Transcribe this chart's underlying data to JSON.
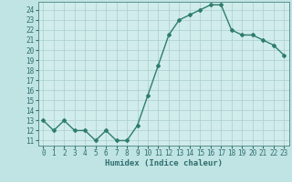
{
  "x": [
    0,
    1,
    2,
    3,
    4,
    5,
    6,
    7,
    8,
    9,
    10,
    11,
    12,
    13,
    14,
    15,
    16,
    17,
    18,
    19,
    20,
    21,
    22,
    23
  ],
  "y": [
    13,
    12,
    13,
    12,
    12,
    11,
    12,
    11,
    11,
    12.5,
    15.5,
    18.5,
    21.5,
    23,
    23.5,
    24,
    24.5,
    24.5,
    22,
    21.5,
    21.5,
    21,
    20.5,
    19.5
  ],
  "line_color": "#2e7d6e",
  "marker": "D",
  "marker_size": 2,
  "bg_plot": "#d0eceb",
  "bg_outer": "#c0e4e3",
  "grid_color": "#aacfce",
  "xlabel": "Humidex (Indice chaleur)",
  "ylabel_ticks": [
    11,
    12,
    13,
    14,
    15,
    16,
    17,
    18,
    19,
    20,
    21,
    22,
    23,
    24
  ],
  "ylim": [
    10.5,
    24.8
  ],
  "xlim": [
    -0.5,
    23.5
  ],
  "tick_fontsize": 5.5,
  "xlabel_fontsize": 6.5,
  "linewidth": 1.0
}
